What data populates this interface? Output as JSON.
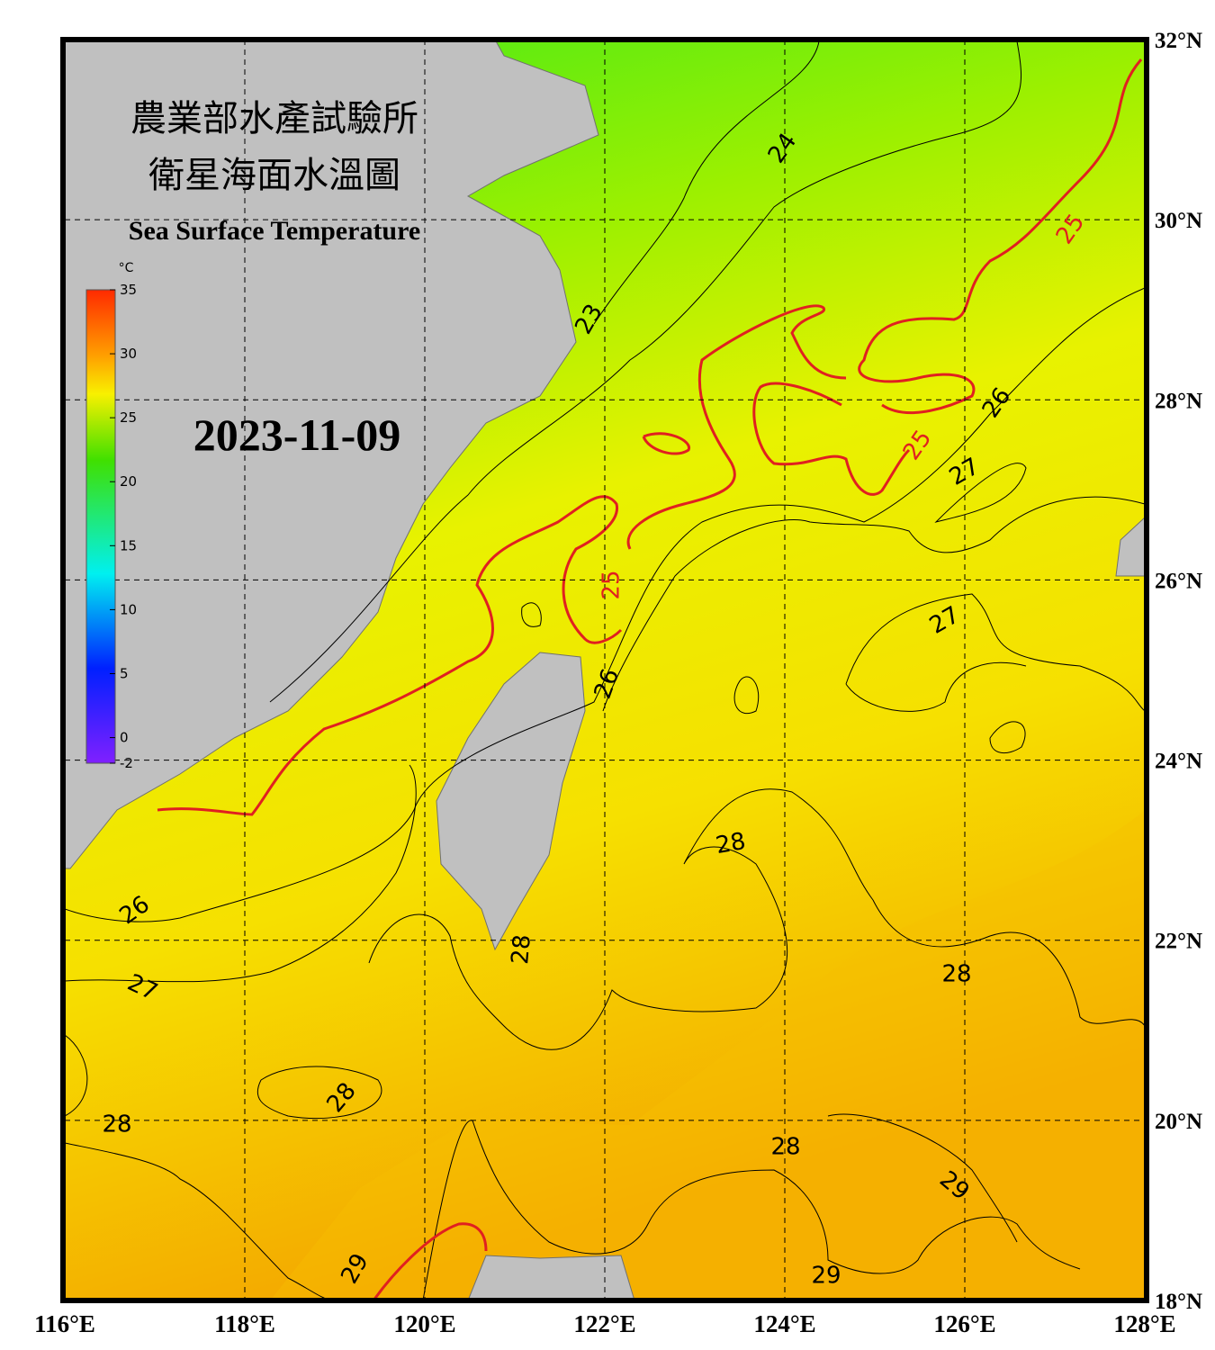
{
  "title": {
    "line1": "農業部水產試驗所",
    "line2": "衛星海面水溫圖",
    "en": "Sea Surface Temperature"
  },
  "date": "2023-11-09",
  "colorbar": {
    "unit": "°C",
    "lim": [
      -2,
      35
    ],
    "ticks": [
      35,
      30,
      25,
      20,
      15,
      10,
      5,
      0,
      -2
    ]
  },
  "map": {
    "lon_lim": [
      116,
      128
    ],
    "lat_lim": [
      18,
      32
    ],
    "lon_ticks": [
      {
        "value": 116,
        "label": "116°E"
      },
      {
        "value": 118,
        "label": "118°E"
      },
      {
        "value": 120,
        "label": "120°E"
      },
      {
        "value": 122,
        "label": "122°E"
      },
      {
        "value": 124,
        "label": "124°E"
      },
      {
        "value": 126,
        "label": "126°E"
      },
      {
        "value": 128,
        "label": "128°E"
      }
    ],
    "lat_ticks": [
      {
        "value": 18,
        "label": "18°N"
      },
      {
        "value": 20,
        "label": "20°N"
      },
      {
        "value": 22,
        "label": "22°N"
      },
      {
        "value": 24,
        "label": "24°N"
      },
      {
        "value": 26,
        "label": "26°N"
      },
      {
        "value": 28,
        "label": "28°N"
      },
      {
        "value": 30,
        "label": "30°N"
      },
      {
        "value": 32,
        "label": "32°N"
      }
    ],
    "contour_labels": [
      {
        "text": "24",
        "color": "#000000"
      },
      {
        "text": "25",
        "color": "#e02020"
      },
      {
        "text": "23",
        "color": "#000000"
      },
      {
        "text": "26",
        "color": "#000000"
      },
      {
        "text": "25",
        "color": "#e02020"
      },
      {
        "text": "27",
        "color": "#000000"
      },
      {
        "text": "25",
        "color": "#e02020"
      },
      {
        "text": "27",
        "color": "#000000"
      },
      {
        "text": "26",
        "color": "#000000"
      },
      {
        "text": "28",
        "color": "#000000"
      },
      {
        "text": "26",
        "color": "#000000"
      },
      {
        "text": "28",
        "color": "#000000"
      },
      {
        "text": "28",
        "color": "#000000"
      },
      {
        "text": "27",
        "color": "#000000"
      },
      {
        "text": "28",
        "color": "#000000"
      },
      {
        "text": "28",
        "color": "#000000"
      },
      {
        "text": "28",
        "color": "#000000"
      },
      {
        "text": "29",
        "color": "#000000"
      },
      {
        "text": "29",
        "color": "#000000"
      },
      {
        "text": "29",
        "color": "#000000"
      }
    ]
  }
}
